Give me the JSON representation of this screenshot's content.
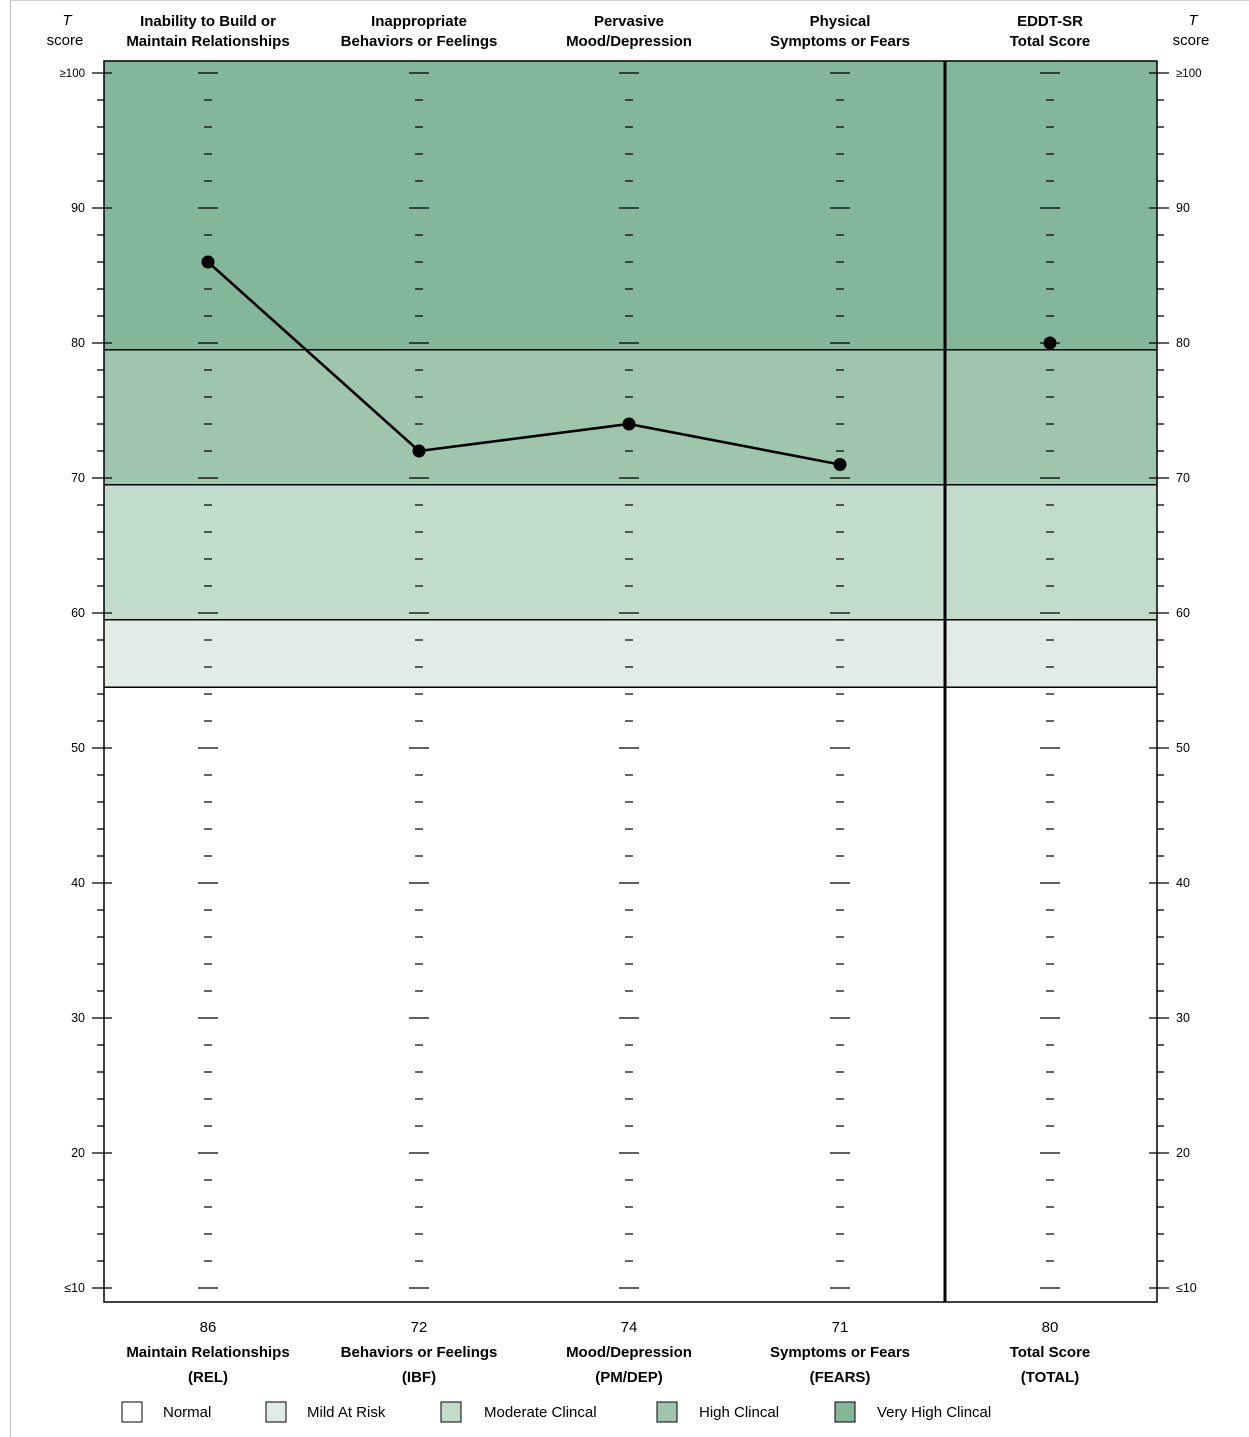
{
  "chart_data": {
    "type": "line",
    "axis_label_top": "T",
    "axis_label_bottom": "score",
    "y_ticks": [
      "≥100",
      "90",
      "80",
      "70",
      "60",
      "50",
      "40",
      "30",
      "20",
      "≤10"
    ],
    "ylim": [
      10,
      100
    ],
    "scales": [
      {
        "header": [
          "Inability to Build or",
          "Maintain Relationships"
        ],
        "footer": [
          "Maintain Relationships",
          "(REL)"
        ],
        "value": 86,
        "value_label": "86"
      },
      {
        "header": [
          "Inappropriate",
          "Behaviors or Feelings"
        ],
        "footer": [
          "Behaviors or Feelings",
          "(IBF)"
        ],
        "value": 72,
        "value_label": "72"
      },
      {
        "header": [
          "Pervasive",
          "Mood/Depression"
        ],
        "footer": [
          "Mood/Depression",
          "(PM/DEP)"
        ],
        "value": 74,
        "value_label": "74"
      },
      {
        "header": [
          "Physical",
          "Symptoms or Fears"
        ],
        "footer": [
          "Symptoms or Fears",
          "(FEARS)"
        ],
        "value": 71,
        "value_label": "71"
      }
    ],
    "total": {
      "header": [
        "EDDT-SR",
        "Total Score"
      ],
      "footer": [
        "Total Score",
        "(TOTAL)"
      ],
      "value": 80,
      "value_label": "80"
    },
    "bands": [
      {
        "name": "Normal",
        "from": 10,
        "to": 54.5,
        "color": "#ffffff"
      },
      {
        "name": "Mild At Risk",
        "from": 54.5,
        "to": 59.5,
        "color": "#e0ece5"
      },
      {
        "name": "Moderate Clincal",
        "from": 59.5,
        "to": 69.5,
        "color": "#c1dccb"
      },
      {
        "name": "High Clincal",
        "from": 69.5,
        "to": 79.5,
        "color": "#9fc6ac"
      },
      {
        "name": "Very High Clincal",
        "from": 79.5,
        "to": 100.9,
        "color": "#84b799"
      }
    ],
    "grid": false
  }
}
